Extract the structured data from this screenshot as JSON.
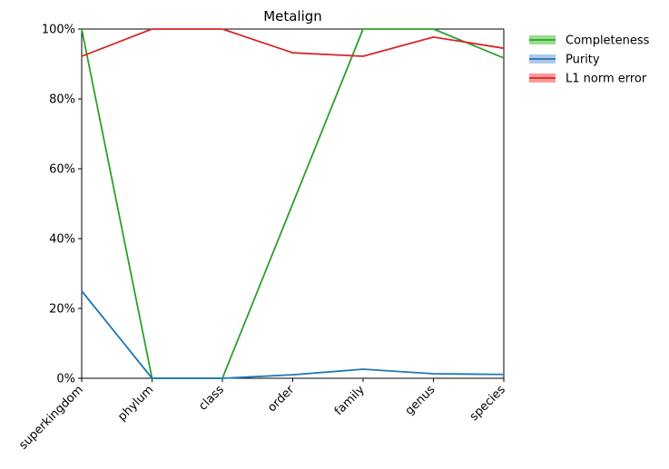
{
  "chart_data": {
    "type": "line",
    "title": "Metalign",
    "xlabel": "",
    "ylabel": "",
    "categories": [
      "superkingdom",
      "phylum",
      "class",
      "order",
      "family",
      "genus",
      "species"
    ],
    "ylim": [
      0,
      100
    ],
    "yticks": [
      0,
      20,
      40,
      60,
      80,
      100
    ],
    "ytick_labels": [
      "0%",
      "20%",
      "40%",
      "60%",
      "80%",
      "100%"
    ],
    "grid": false,
    "legend_position": "outside-top-right",
    "series": [
      {
        "name": "Completeness",
        "color": "#2ca02c",
        "band_color": "#98df8a",
        "values": [
          100,
          0,
          0,
          50,
          100,
          100,
          91.7
        ]
      },
      {
        "name": "Purity",
        "color": "#1f77b4",
        "band_color": "#aec7e8",
        "values": [
          25,
          0,
          0,
          1.0,
          2.6,
          1.3,
          1.1
        ]
      },
      {
        "name": "L1 norm error",
        "color": "#d62728",
        "band_color": "#ff9896",
        "values": [
          92.2,
          100,
          100,
          93.2,
          92.2,
          97.7,
          94.5
        ]
      }
    ]
  }
}
